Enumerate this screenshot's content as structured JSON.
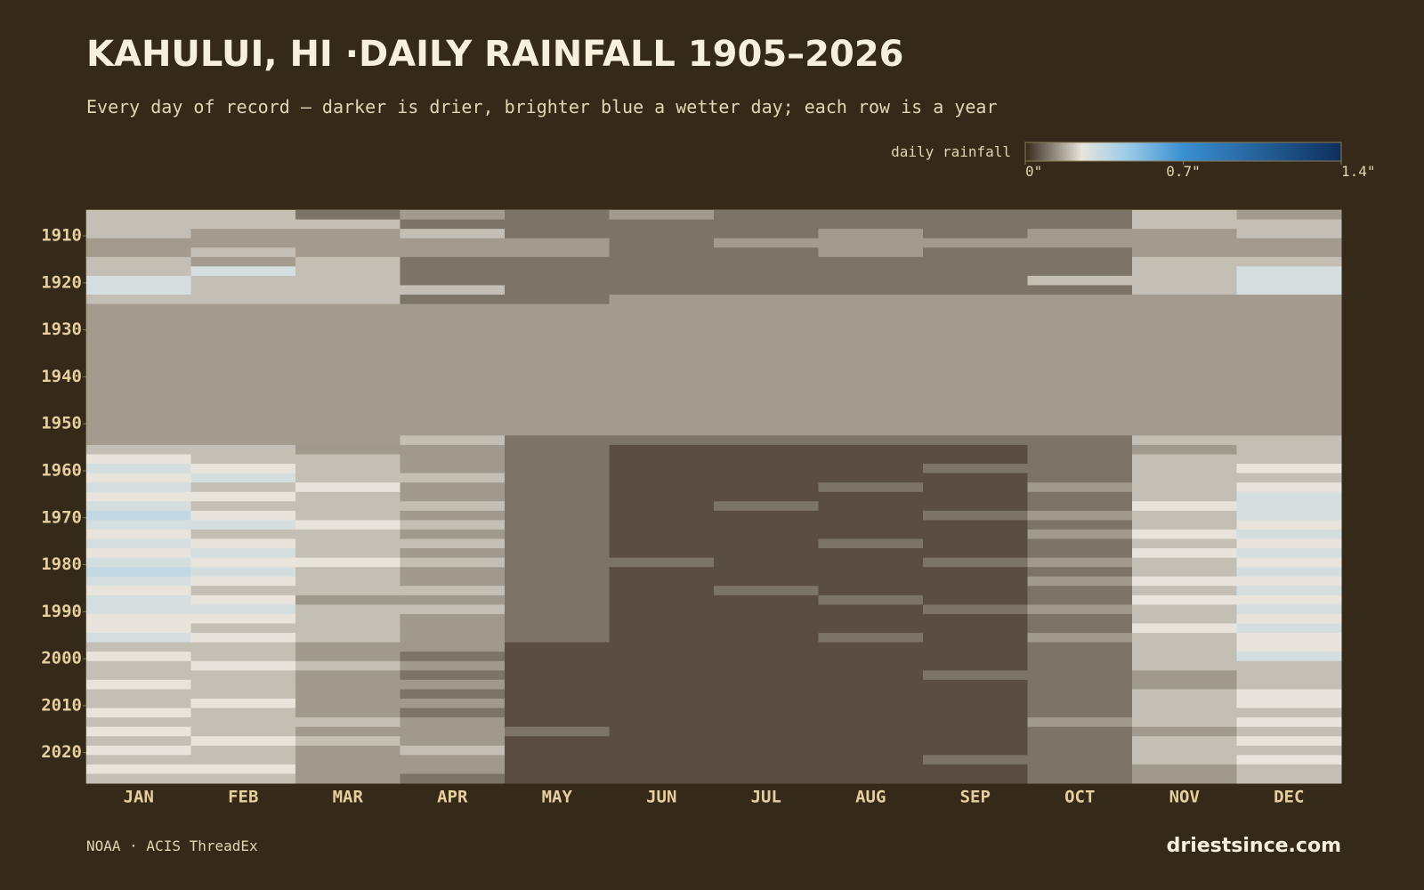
{
  "chart_data": {
    "type": "heatmap",
    "title": "KAHULUI, HI ·DAILY RAINFALL 1905–2026",
    "subtitle": "Every day of record — darker is drier, brighter blue a wetter day; each row is a year",
    "colorbar_label": "daily rainfall",
    "source": "NOAA · ACIS ThreadEx",
    "brand": "driestsince.com",
    "categories": [
      "JAN",
      "FEB",
      "MAR",
      "APR",
      "MAY",
      "JUN",
      "JUL",
      "AUG",
      "SEP",
      "OCT",
      "NOV",
      "DEC"
    ],
    "y": [
      1905,
      1907,
      1909,
      1911,
      1913,
      1915,
      1917,
      1919,
      1921,
      1923,
      1925,
      1927,
      1929,
      1931,
      1933,
      1935,
      1937,
      1939,
      1941,
      1943,
      1945,
      1947,
      1949,
      1951,
      1953,
      1955,
      1957,
      1959,
      1961,
      1963,
      1965,
      1967,
      1969,
      1971,
      1973,
      1975,
      1977,
      1979,
      1981,
      1983,
      1985,
      1987,
      1989,
      1991,
      1993,
      1995,
      1997,
      1999,
      2001,
      2003,
      2005,
      2007,
      2009,
      2011,
      2013,
      2015,
      2017,
      2019,
      2021,
      2023,
      2025
    ],
    "ylim": [
      1905,
      2027
    ],
    "yticks": [
      1910,
      1920,
      1930,
      1940,
      1950,
      1960,
      1970,
      1980,
      1990,
      2000,
      2010,
      2020
    ],
    "z": [
      [
        0.2,
        0.2,
        0.1,
        null,
        0.1,
        null,
        0.1,
        0.1,
        0.1,
        0.1,
        0.2,
        null
      ],
      [
        0.2,
        0.2,
        0.2,
        0.1,
        0.1,
        0.1,
        0.1,
        0.1,
        0.1,
        0.1,
        0.2,
        0.2
      ],
      [
        0.2,
        null,
        null,
        0.2,
        0.1,
        0.1,
        0.1,
        null,
        0.1,
        null,
        null,
        0.2
      ],
      [
        null,
        null,
        null,
        null,
        null,
        0.1,
        null,
        null,
        null,
        null,
        null,
        null
      ],
      [
        null,
        0.2,
        null,
        null,
        null,
        0.1,
        0.1,
        null,
        0.1,
        0.1,
        null,
        null
      ],
      [
        0.2,
        null,
        0.2,
        0.1,
        0.1,
        0.1,
        0.1,
        0.1,
        0.1,
        0.1,
        0.2,
        0.2
      ],
      [
        0.2,
        0.3,
        0.2,
        0.1,
        0.1,
        0.1,
        0.1,
        0.1,
        0.1,
        0.1,
        0.2,
        0.3
      ],
      [
        0.3,
        0.2,
        0.2,
        0.1,
        0.1,
        0.1,
        0.1,
        0.1,
        0.1,
        0.2,
        0.2,
        0.3
      ],
      [
        0.3,
        0.2,
        0.2,
        0.2,
        0.1,
        0.1,
        0.1,
        0.1,
        0.1,
        0.1,
        0.2,
        0.3
      ],
      [
        0.2,
        0.2,
        0.2,
        0.1,
        0.1,
        null,
        null,
        null,
        null,
        null,
        null,
        null
      ],
      [
        null,
        null,
        null,
        null,
        null,
        null,
        null,
        null,
        null,
        null,
        null,
        null
      ],
      [
        null,
        null,
        null,
        null,
        null,
        null,
        null,
        null,
        null,
        null,
        null,
        null
      ],
      [
        null,
        null,
        null,
        null,
        null,
        null,
        null,
        null,
        null,
        null,
        null,
        null
      ],
      [
        null,
        null,
        null,
        null,
        null,
        null,
        null,
        null,
        null,
        null,
        null,
        null
      ],
      [
        null,
        null,
        null,
        null,
        null,
        null,
        null,
        null,
        null,
        null,
        null,
        null
      ],
      [
        null,
        null,
        null,
        null,
        null,
        null,
        null,
        null,
        null,
        null,
        null,
        null
      ],
      [
        null,
        null,
        null,
        null,
        null,
        null,
        null,
        null,
        null,
        null,
        null,
        null
      ],
      [
        null,
        null,
        null,
        null,
        null,
        null,
        null,
        null,
        null,
        null,
        null,
        null
      ],
      [
        null,
        null,
        null,
        null,
        null,
        null,
        null,
        null,
        null,
        null,
        null,
        null
      ],
      [
        null,
        null,
        null,
        null,
        null,
        null,
        null,
        null,
        null,
        null,
        null,
        null
      ],
      [
        null,
        null,
        null,
        null,
        null,
        null,
        null,
        null,
        null,
        null,
        null,
        null
      ],
      [
        null,
        null,
        null,
        null,
        null,
        null,
        null,
        null,
        null,
        null,
        null,
        null
      ],
      [
        null,
        null,
        null,
        null,
        null,
        null,
        null,
        null,
        null,
        null,
        null,
        null
      ],
      [
        null,
        null,
        null,
        null,
        null,
        null,
        null,
        null,
        null,
        null,
        null,
        null
      ],
      [
        null,
        null,
        null,
        0.2,
        0.1,
        0.1,
        0.1,
        0.1,
        0.1,
        0.1,
        0.2,
        0.2
      ],
      [
        0.2,
        0.2,
        0.15,
        0.15,
        0.1,
        0.05,
        0.05,
        0.05,
        0.05,
        0.1,
        0.15,
        0.2
      ],
      [
        0.25,
        0.2,
        0.2,
        0.15,
        0.1,
        0.05,
        0.05,
        0.05,
        0.05,
        0.1,
        0.2,
        0.2
      ],
      [
        0.3,
        0.25,
        0.2,
        0.15,
        0.1,
        0.05,
        0.05,
        0.05,
        0.1,
        0.1,
        0.2,
        0.25
      ],
      [
        0.25,
        0.3,
        0.2,
        0.2,
        0.1,
        0.05,
        0.05,
        0.05,
        0.05,
        0.1,
        0.2,
        0.2
      ],
      [
        0.3,
        0.2,
        0.25,
        0.15,
        0.1,
        0.05,
        0.05,
        0.1,
        0.05,
        0.15,
        0.2,
        0.25
      ],
      [
        0.25,
        0.25,
        0.2,
        0.15,
        0.1,
        0.05,
        0.05,
        0.05,
        0.05,
        0.1,
        0.2,
        0.3
      ],
      [
        0.3,
        0.2,
        0.2,
        0.2,
        0.1,
        0.05,
        0.1,
        0.05,
        0.05,
        0.1,
        0.25,
        0.3
      ],
      [
        0.35,
        0.25,
        0.2,
        0.15,
        0.1,
        0.05,
        0.05,
        0.05,
        0.1,
        0.15,
        0.2,
        0.3
      ],
      [
        0.3,
        0.3,
        0.25,
        0.2,
        0.1,
        0.05,
        0.05,
        0.05,
        0.05,
        0.1,
        0.2,
        0.25
      ],
      [
        0.25,
        0.2,
        0.2,
        0.15,
        0.1,
        0.05,
        0.05,
        0.05,
        0.05,
        0.15,
        0.25,
        0.3
      ],
      [
        0.3,
        0.25,
        0.2,
        0.2,
        0.1,
        0.05,
        0.05,
        0.1,
        0.05,
        0.1,
        0.2,
        0.25
      ],
      [
        0.25,
        0.3,
        0.2,
        0.15,
        0.1,
        0.05,
        0.05,
        0.05,
        0.05,
        0.1,
        0.25,
        0.3
      ],
      [
        0.3,
        0.25,
        0.25,
        0.2,
        0.1,
        0.1,
        0.05,
        0.05,
        0.1,
        0.15,
        0.2,
        0.25
      ],
      [
        0.35,
        0.3,
        0.2,
        0.15,
        0.1,
        0.05,
        0.05,
        0.05,
        0.05,
        0.1,
        0.2,
        0.3
      ],
      [
        0.3,
        0.25,
        0.2,
        0.15,
        0.1,
        0.05,
        0.05,
        0.05,
        0.05,
        0.15,
        0.25,
        0.25
      ],
      [
        0.25,
        0.2,
        0.2,
        0.2,
        0.1,
        0.05,
        0.1,
        0.05,
        0.05,
        0.1,
        0.2,
        0.3
      ],
      [
        0.3,
        0.25,
        0.15,
        0.15,
        0.1,
        0.05,
        0.05,
        0.1,
        0.05,
        0.1,
        0.25,
        0.25
      ],
      [
        0.3,
        0.3,
        0.2,
        0.2,
        0.1,
        0.05,
        0.05,
        0.05,
        0.1,
        0.15,
        0.2,
        0.3
      ],
      [
        0.25,
        0.25,
        0.2,
        0.15,
        0.1,
        0.05,
        0.05,
        0.05,
        0.05,
        0.1,
        0.2,
        0.25
      ],
      [
        0.25,
        0.2,
        0.2,
        0.15,
        0.1,
        0.05,
        0.05,
        0.05,
        0.05,
        0.1,
        0.25,
        0.3
      ],
      [
        0.3,
        0.25,
        0.2,
        0.15,
        0.1,
        0.05,
        0.05,
        0.1,
        0.05,
        0.15,
        0.2,
        0.25
      ],
      [
        0.2,
        0.2,
        0.15,
        0.15,
        0.05,
        0.05,
        0.05,
        0.05,
        0.05,
        0.1,
        0.2,
        0.25
      ],
      [
        0.25,
        0.2,
        0.15,
        0.1,
        0.05,
        0.05,
        0.05,
        0.05,
        0.05,
        0.1,
        0.2,
        0.3
      ],
      [
        0.2,
        0.25,
        0.2,
        0.15,
        0.05,
        0.05,
        0.05,
        0.05,
        0.05,
        0.1,
        0.2,
        0.2
      ],
      [
        0.2,
        0.2,
        0.15,
        0.1,
        0.05,
        0.05,
        0.05,
        0.05,
        0.1,
        0.1,
        0.15,
        0.2
      ],
      [
        0.25,
        0.2,
        0.15,
        0.15,
        0.05,
        0.05,
        0.05,
        0.05,
        0.05,
        0.1,
        0.15,
        0.2
      ],
      [
        0.2,
        0.2,
        0.15,
        0.1,
        0.05,
        0.05,
        0.05,
        0.05,
        0.05,
        0.1,
        0.2,
        0.25
      ],
      [
        0.2,
        0.25,
        0.15,
        0.15,
        0.05,
        0.05,
        0.05,
        0.05,
        0.05,
        0.1,
        0.2,
        0.25
      ],
      [
        0.25,
        0.2,
        0.15,
        0.1,
        0.05,
        0.05,
        0.05,
        0.05,
        0.05,
        0.1,
        0.2,
        0.2
      ],
      [
        0.2,
        0.2,
        0.2,
        0.15,
        0.05,
        0.05,
        0.05,
        0.05,
        0.05,
        0.15,
        0.2,
        0.25
      ],
      [
        0.25,
        0.2,
        0.15,
        0.15,
        0.1,
        0.05,
        0.05,
        0.05,
        0.05,
        0.1,
        0.15,
        0.2
      ],
      [
        0.2,
        0.25,
        0.2,
        0.15,
        0.05,
        0.05,
        0.05,
        0.05,
        0.05,
        0.1,
        0.2,
        0.25
      ],
      [
        0.25,
        0.2,
        0.15,
        0.2,
        0.05,
        0.05,
        0.05,
        0.05,
        0.05,
        0.1,
        0.2,
        0.2
      ],
      [
        0.2,
        0.2,
        0.15,
        0.15,
        0.05,
        0.05,
        0.05,
        0.05,
        0.1,
        0.1,
        0.2,
        0.25
      ],
      [
        0.25,
        0.25,
        0.15,
        0.15,
        0.05,
        0.05,
        0.05,
        0.05,
        0.05,
        0.1,
        0.15,
        0.2
      ],
      [
        0.2,
        0.2,
        0.15,
        0.1,
        0.05,
        0.05,
        0.05,
        0.05,
        0.05,
        0.1,
        0.15,
        0.2
      ]
    ],
    "missing_color": "#a39b8e",
    "colorscale": [
      [
        0,
        "#35291a"
      ],
      [
        0.25,
        "#e8e4dc"
      ],
      [
        0.45,
        "#9ccbe8"
      ],
      [
        0.7,
        "#3a8fd0"
      ],
      [
        1.4,
        "#0d2f5e"
      ]
    ],
    "clim": [
      0,
      1.4
    ],
    "cticks": [
      {
        "value": 0,
        "label": "0\""
      },
      {
        "value": 0.7,
        "label": "0.7\""
      },
      {
        "value": 1.4,
        "label": "1.4\""
      }
    ]
  }
}
